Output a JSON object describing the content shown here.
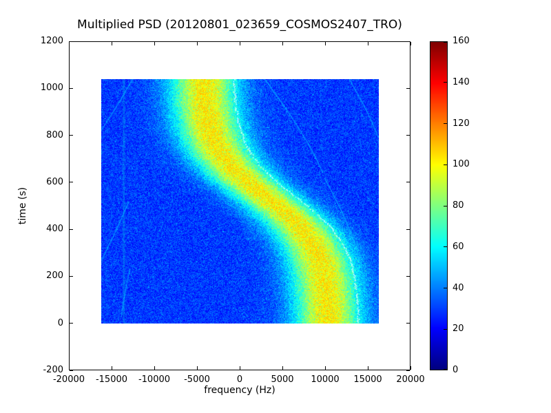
{
  "chart_data": {
    "type": "heatmap",
    "title": "Multiplied PSD (20120801_023659_COSMOS2407_TRO)",
    "xlabel": "frequency (Hz)",
    "ylabel": "time (s)",
    "xlim": [
      -20000,
      20000
    ],
    "ylim": [
      -200,
      1200
    ],
    "xticks": {
      "values": [
        -20000,
        -15000,
        -10000,
        -5000,
        0,
        5000,
        10000,
        15000,
        20000
      ],
      "labels": [
        "-20000",
        "-15000",
        "-10000",
        "-5000",
        "0",
        "5000",
        "10000",
        "15000",
        "20000"
      ]
    },
    "yticks": {
      "values": [
        -200,
        0,
        200,
        400,
        600,
        800,
        1000,
        1200
      ],
      "labels": [
        "-200",
        "0",
        "200",
        "400",
        "600",
        "800",
        "1000",
        "1200"
      ]
    },
    "colorbar": {
      "min": 0,
      "max": 160,
      "tick_values": [
        0,
        20,
        40,
        60,
        80,
        100,
        120,
        140,
        160
      ],
      "tick_labels": [
        "0",
        "20",
        "40",
        "60",
        "80",
        "100",
        "120",
        "140",
        "160"
      ],
      "colormap": "jet"
    },
    "heatmap_extent": {
      "f_min": -16250,
      "f_max": 16250,
      "t_min": 0,
      "t_max": 1040
    },
    "noise": {
      "base_value": 29,
      "amplitude": 11,
      "speckle_value": 20,
      "speckle_fraction": 0.005
    },
    "doppler_band": {
      "description": "S-shaped doppler track, bright yellow-green core on blue background",
      "center_offset_hz": 3000,
      "amplitude_hz": 7400,
      "t_mid_s": 540,
      "tau_s": 210,
      "sigma_hz": 3900,
      "peak_delta": 74,
      "max_value": 110
    },
    "white_trace": {
      "offset_hz": 3500,
      "color": "#ffffff"
    },
    "faint_traces": {
      "color": "#00c8ff",
      "paths": [
        [
          [
            -12600,
            1040
          ],
          [
            -13900,
            955
          ],
          [
            -15200,
            880
          ],
          [
            -16200,
            825
          ]
        ],
        [
          [
            -13000,
            520
          ],
          [
            -14200,
            420
          ],
          [
            -15400,
            330
          ],
          [
            -16200,
            270
          ]
        ],
        [
          [
            2900,
            1040
          ],
          [
            5000,
            935
          ],
          [
            7200,
            815
          ],
          [
            8900,
            705
          ],
          [
            9700,
            640
          ]
        ],
        [
          [
            9900,
            620
          ],
          [
            11500,
            510
          ],
          [
            13000,
            390
          ],
          [
            14100,
            260
          ],
          [
            14700,
            150
          ]
        ],
        [
          [
            12800,
            1040
          ],
          [
            14200,
            950
          ],
          [
            15500,
            855
          ],
          [
            16200,
            790
          ]
        ],
        [
          [
            -12900,
            230
          ],
          [
            -13500,
            130
          ],
          [
            -13900,
            30
          ]
        ]
      ]
    },
    "vertical_lines": [
      {
        "f_hz": -13600
      }
    ]
  }
}
